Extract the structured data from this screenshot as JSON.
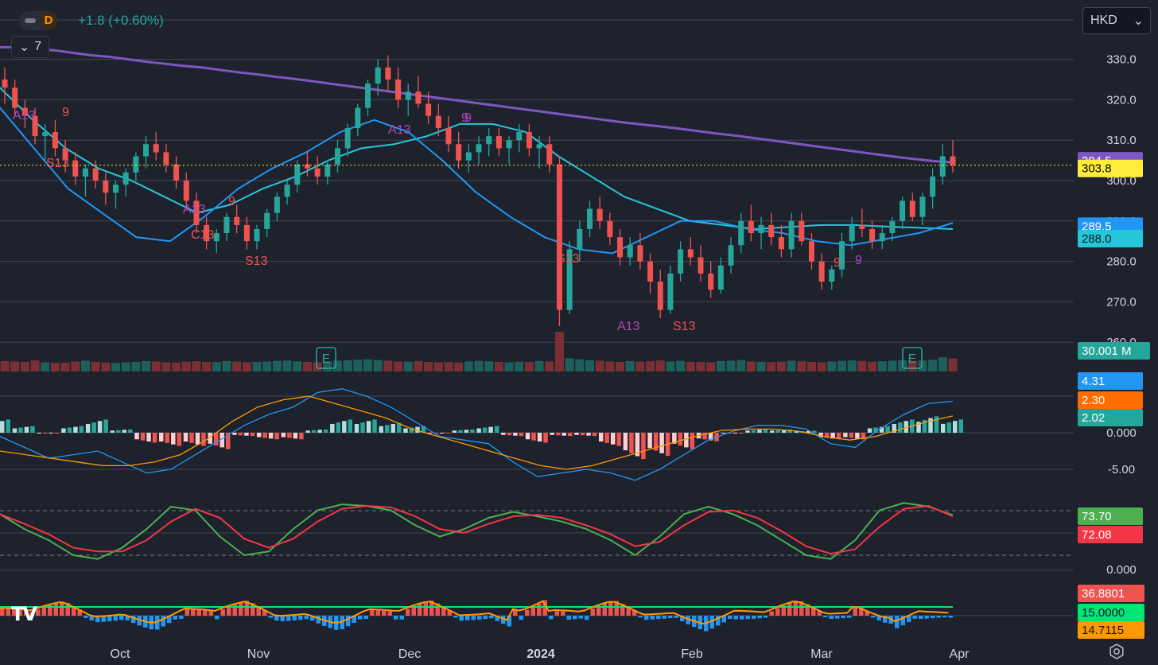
{
  "header": {
    "change_text": "+1.8 (+0.60%)",
    "collapse_count": "7",
    "currency": "HKD",
    "logo_text": "TV"
  },
  "colors": {
    "background": "#1e222d",
    "up": "#26a69a",
    "down": "#ef5350",
    "ma_long": "#7e57c2",
    "ma_mid": "#26c6da",
    "ma_short": "#2196f3",
    "macd": "#2196f3",
    "signal": "#ff9800",
    "stoch_k": "#4caf50",
    "stoch_d": "#f23645",
    "adx_line": "#ff9800",
    "threshold": "#00e676"
  },
  "chart_data": [
    {
      "type": "candlestick",
      "name": "price",
      "y_ticks": [
        "330.0",
        "320.0",
        "310.0",
        "300.0",
        "290.0",
        "280.0",
        "270.0",
        "260.0"
      ],
      "ylim": [
        260,
        335
      ],
      "x_ticks": [
        {
          "label": "Oct",
          "x": 151
        },
        {
          "label": "Nov",
          "x": 325
        },
        {
          "label": "Dec",
          "x": 515
        },
        {
          "label": "2024",
          "x": 680
        },
        {
          "label": "Feb",
          "x": 870
        },
        {
          "label": "Mar",
          "x": 1033
        },
        {
          "label": "Apr",
          "x": 1206
        }
      ],
      "ohlc": [
        [
          325,
          328,
          319,
          323
        ],
        [
          323,
          325,
          316,
          318
        ],
        [
          318,
          320,
          313,
          316
        ],
        [
          316,
          318,
          309,
          311
        ],
        [
          311,
          314,
          305,
          312
        ],
        [
          312,
          315,
          306,
          308
        ],
        [
          308,
          310,
          302,
          305
        ],
        [
          305,
          307,
          299,
          301
        ],
        [
          301,
          304,
          296,
          303
        ],
        [
          303,
          305,
          298,
          300
        ],
        [
          300,
          302,
          294,
          297
        ],
        [
          297,
          300,
          293,
          299
        ],
        [
          299,
          303,
          296,
          302
        ],
        [
          302,
          307,
          300,
          306
        ],
        [
          306,
          311,
          303,
          309
        ],
        [
          309,
          312,
          305,
          307
        ],
        [
          307,
          309,
          302,
          304
        ],
        [
          304,
          306,
          298,
          300
        ],
        [
          300,
          302,
          293,
          295
        ],
        [
          295,
          297,
          287,
          289
        ],
        [
          289,
          291,
          283,
          285
        ],
        [
          285,
          288,
          282,
          287
        ],
        [
          287,
          292,
          285,
          291
        ],
        [
          291,
          294,
          287,
          289
        ],
        [
          289,
          291,
          283,
          285
        ],
        [
          285,
          289,
          283,
          288
        ],
        [
          288,
          293,
          286,
          292
        ],
        [
          292,
          297,
          290,
          296
        ],
        [
          296,
          300,
          294,
          299
        ],
        [
          299,
          305,
          297,
          304
        ],
        [
          304,
          307,
          301,
          303
        ],
        [
          303,
          306,
          299,
          301
        ],
        [
          301,
          305,
          299,
          304
        ],
        [
          304,
          310,
          302,
          308
        ],
        [
          308,
          314,
          306,
          313
        ],
        [
          313,
          319,
          311,
          318
        ],
        [
          318,
          325,
          316,
          324
        ],
        [
          324,
          330,
          321,
          328
        ],
        [
          328,
          331,
          322,
          325
        ],
        [
          325,
          328,
          318,
          320
        ],
        [
          320,
          324,
          316,
          322
        ],
        [
          322,
          326,
          318,
          319
        ],
        [
          319,
          322,
          314,
          316
        ],
        [
          316,
          319,
          311,
          313
        ],
        [
          313,
          316,
          307,
          309
        ],
        [
          309,
          312,
          303,
          305
        ],
        [
          305,
          309,
          302,
          307
        ],
        [
          307,
          311,
          304,
          309
        ],
        [
          309,
          313,
          306,
          311
        ],
        [
          311,
          313,
          306,
          308
        ],
        [
          308,
          311,
          304,
          310
        ],
        [
          310,
          314,
          307,
          312
        ],
        [
          312,
          314,
          306,
          308
        ],
        [
          308,
          311,
          303,
          309
        ],
        [
          309,
          311,
          302,
          304
        ],
        [
          304,
          306,
          264,
          268
        ],
        [
          268,
          285,
          267,
          283
        ],
        [
          283,
          290,
          280,
          288
        ],
        [
          288,
          295,
          286,
          293
        ],
        [
          293,
          296,
          288,
          290
        ],
        [
          290,
          292,
          284,
          286
        ],
        [
          286,
          288,
          279,
          281
        ],
        [
          281,
          286,
          279,
          284
        ],
        [
          284,
          287,
          278,
          280
        ],
        [
          280,
          282,
          272,
          275
        ],
        [
          275,
          278,
          266,
          268
        ],
        [
          268,
          279,
          267,
          277
        ],
        [
          277,
          285,
          275,
          283
        ],
        [
          283,
          286,
          279,
          281
        ],
        [
          281,
          284,
          275,
          277
        ],
        [
          277,
          280,
          271,
          273
        ],
        [
          273,
          281,
          272,
          279
        ],
        [
          279,
          286,
          277,
          284
        ],
        [
          284,
          292,
          282,
          290
        ],
        [
          290,
          294,
          285,
          287
        ],
        [
          287,
          291,
          283,
          289
        ],
        [
          289,
          292,
          284,
          286
        ],
        [
          286,
          289,
          281,
          283
        ],
        [
          283,
          292,
          281,
          290
        ],
        [
          290,
          292,
          284,
          285
        ],
        [
          285,
          287,
          278,
          280
        ],
        [
          280,
          282,
          273,
          275
        ],
        [
          275,
          279,
          273,
          278
        ],
        [
          278,
          287,
          276,
          285
        ],
        [
          285,
          291,
          283,
          289
        ],
        [
          289,
          293,
          286,
          288
        ],
        [
          288,
          290,
          283,
          285
        ],
        [
          285,
          289,
          283,
          287
        ],
        [
          287,
          291,
          285,
          290
        ],
        [
          290,
          296,
          288,
          295
        ],
        [
          295,
          297,
          290,
          291
        ],
        [
          291,
          297,
          289,
          296
        ],
        [
          296,
          303,
          293,
          301
        ],
        [
          301,
          309,
          299,
          306
        ],
        [
          306,
          310,
          302,
          303.8
        ]
      ],
      "volume": [
        42,
        40,
        38,
        45,
        36,
        33,
        34,
        40,
        44,
        38,
        35,
        33,
        36,
        38,
        42,
        40,
        36,
        35,
        39,
        41,
        38,
        37,
        42,
        39,
        36,
        38,
        40,
        43,
        45,
        41,
        38,
        36,
        40,
        44,
        46,
        48,
        50,
        47,
        44,
        40,
        39,
        42,
        38,
        36,
        37,
        35,
        40,
        43,
        41,
        38,
        36,
        39,
        37,
        42,
        40,
        100,
        55,
        50,
        46,
        44,
        40,
        38,
        42,
        39,
        41,
        45,
        40,
        43,
        38,
        37,
        36,
        42,
        44,
        47,
        40,
        38,
        37,
        39,
        44,
        41,
        38,
        36,
        40,
        43,
        45,
        42,
        39,
        41,
        44,
        46,
        43,
        45,
        48,
        60,
        55
      ],
      "ma_long": [
        333,
        333,
        332.6,
        332.2,
        331.6,
        331,
        330.6,
        330,
        329.4,
        328.9,
        328.4,
        328,
        327.4,
        326.8,
        326.3,
        325.7,
        325.2,
        324.6,
        324,
        323.4,
        322.8,
        322.2,
        321.6,
        321,
        320.4,
        319.8,
        319.2,
        318.6,
        318,
        317.4,
        316.8,
        316.2,
        315.6,
        315,
        314.4,
        313.9,
        313.4,
        312.9,
        312.3,
        311.7,
        311.2,
        310.6,
        310,
        309.4,
        308.8,
        308.2,
        307.6,
        307,
        306.4,
        305.8,
        305.3,
        304.8,
        304.5
      ],
      "ma_mid": [
        323,
        315,
        308,
        303,
        300,
        296,
        292,
        294,
        298,
        301,
        305,
        308,
        309,
        311,
        314,
        314,
        312,
        306,
        301,
        296,
        293,
        290,
        289,
        288,
        288.5,
        289,
        289,
        288.6,
        288.3,
        288
      ],
      "ma_short": [
        318,
        308,
        298,
        292,
        286,
        285,
        291,
        298,
        303,
        307,
        312,
        315,
        312,
        305,
        297,
        291,
        286,
        283,
        282,
        286,
        290,
        290,
        288,
        287,
        285,
        284,
        285.5,
        287,
        289.5
      ],
      "price_labels": {
        "ma_long_value": "304.5",
        "last_price": "303.8",
        "ma_short_value": "289.5",
        "ma_mid_value": "288.0",
        "volume_value": "30.001 M"
      },
      "annotations": [
        "A13",
        "9",
        "S13",
        "A13",
        "9",
        "C13",
        "S13",
        "9",
        "9",
        "A13",
        "S13",
        "A13",
        "S13",
        "9",
        "9",
        "E",
        "E"
      ]
    },
    {
      "type": "macd",
      "y_ticks": [
        "0.000",
        "-5.00"
      ],
      "macd": [
        -0.5,
        -2,
        -3.5,
        -3,
        -2.5,
        -4,
        -5.5,
        -5,
        -3,
        -1,
        1,
        2.5,
        3.5,
        5.5,
        6,
        5,
        3.5,
        1.5,
        -0.5,
        -1,
        -1.5,
        -4,
        -6,
        -5.5,
        -5,
        -5.5,
        -6.5,
        -5,
        -3,
        -1,
        0.2,
        1,
        1,
        0.5,
        -1.5,
        -2,
        0.5,
        2.5,
        4,
        4.31
      ],
      "signal": [
        -2.5,
        -3,
        -3.5,
        -4,
        -4.5,
        -4.5,
        -4,
        -3,
        -1,
        1.5,
        3.5,
        4.5,
        5,
        4,
        3,
        2,
        0.5,
        -0.5,
        -1.5,
        -2.5,
        -3.5,
        -4.5,
        -5,
        -4.5,
        -3.5,
        -2.5,
        -1.5,
        -0.5,
        0.3,
        0.5,
        0.5,
        0.2,
        -0.5,
        -1,
        -0.5,
        0.5,
        1.5,
        2.3
      ],
      "histogram_value": "2.02",
      "values_shown": [
        "4.31",
        "2.30",
        "2.02"
      ]
    },
    {
      "type": "stochastic",
      "y_ticks": [
        "0.000"
      ],
      "k": [
        75,
        55,
        40,
        20,
        15,
        30,
        55,
        85,
        80,
        45,
        20,
        25,
        55,
        80,
        88,
        86,
        80,
        60,
        45,
        55,
        70,
        78,
        72,
        65,
        55,
        40,
        20,
        45,
        75,
        85,
        75,
        60,
        40,
        20,
        15,
        40,
        80,
        90,
        85,
        73.7
      ],
      "d": [
        75,
        62,
        48,
        30,
        25,
        25,
        40,
        65,
        82,
        70,
        42,
        30,
        42,
        65,
        82,
        86,
        84,
        72,
        55,
        50,
        62,
        72,
        74,
        70,
        60,
        48,
        32,
        38,
        60,
        78,
        80,
        70,
        52,
        32,
        22,
        28,
        58,
        82,
        86,
        72.08
      ],
      "values_shown": [
        "73.70",
        "72.08"
      ]
    },
    {
      "type": "adx_histogram",
      "values_shown": [
        "36.8801",
        "15.0000",
        "14.7115"
      ]
    }
  ]
}
